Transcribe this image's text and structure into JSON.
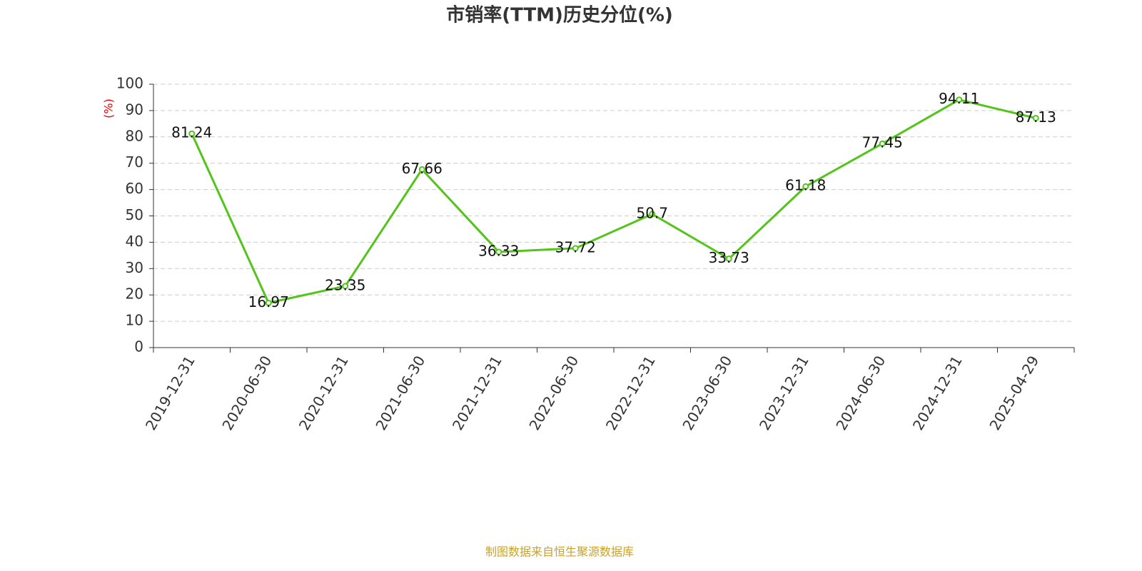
{
  "chart_data": {
    "type": "line",
    "title": "市销率(TTM)历史分位(%)",
    "y_label": "(%)",
    "categories": [
      "2019-12-31",
      "2020-06-30",
      "2020-12-31",
      "2021-06-30",
      "2021-12-31",
      "2022-06-30",
      "2022-12-31",
      "2023-06-30",
      "2023-12-31",
      "2024-06-30",
      "2024-12-31",
      "2025-04-29"
    ],
    "values": [
      81.24,
      16.97,
      23.35,
      67.66,
      36.33,
      37.72,
      50.7,
      33.73,
      61.18,
      77.45,
      94.11,
      87.13
    ],
    "color": "#52c41a",
    "ylim": [
      0,
      100
    ],
    "yticks": [
      0,
      10,
      20,
      30,
      40,
      50,
      60,
      70,
      80,
      90,
      100
    ],
    "grid": true,
    "source": "制图数据来自恒生聚源数据库"
  }
}
